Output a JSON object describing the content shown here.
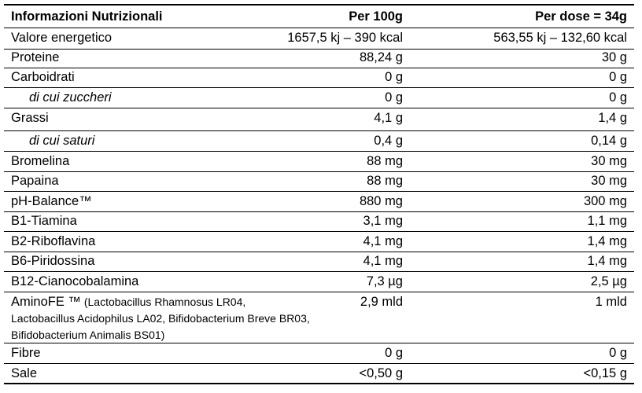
{
  "table": {
    "headers": [
      "Informazioni Nutrizionali",
      "Per 100g",
      "Per dose = 34g"
    ],
    "rows": [
      {
        "name": "Valore energetico",
        "per100": "1657,5 kj – 390 kcal",
        "perDose": "563,55 kj – 132,60 kcal"
      },
      {
        "name": "Proteine",
        "per100": "88,24 g",
        "perDose": "30 g"
      },
      {
        "name": "Carboidrati",
        "per100": "0 g",
        "perDose": "0 g"
      },
      {
        "name": "di cui zuccheri",
        "per100": "0 g",
        "perDose": "0 g"
      },
      {
        "name": "Grassi",
        "per100": "4,1 g",
        "perDose": "1,4 g"
      },
      {
        "name": "di cui saturi",
        "per100": "0,4 g",
        "perDose": "0,14 g"
      },
      {
        "name": "Bromelina",
        "per100": "88 mg",
        "perDose": "30 mg"
      },
      {
        "name": "Papaina",
        "per100": "88 mg",
        "perDose": "30 mg"
      },
      {
        "name": "pH-Balance™",
        "per100": "880 mg",
        "perDose": "300 mg"
      },
      {
        "name": "B1-Tiamina",
        "per100": "3,1 mg",
        "perDose": "1,1 mg"
      },
      {
        "name": "B2-Riboflavina",
        "per100": "4,1 mg",
        "perDose": "1,4 mg"
      },
      {
        "name": "B6-Piridossina",
        "per100": "4,1 mg",
        "perDose": "1,4 mg"
      },
      {
        "name": "B12-Cianocobalamina",
        "per100": "7,3 µg",
        "perDose": "2,5 µg"
      },
      {
        "name": "AminoFE ™",
        "note": "(Lactobacillus Rhamnosus LR04, Lactobacillus Acidophilus LA02, Bifidobacterium Breve BR03, Bifidobacterium Animalis BS01)",
        "per100": "2,9 mld",
        "perDose": "1 mld"
      },
      {
        "name": "Fibre",
        "per100": "0 g",
        "perDose": "0 g"
      },
      {
        "name": "Sale",
        "per100": "<0,50 g",
        "perDose": "<0,15 g"
      }
    ]
  }
}
